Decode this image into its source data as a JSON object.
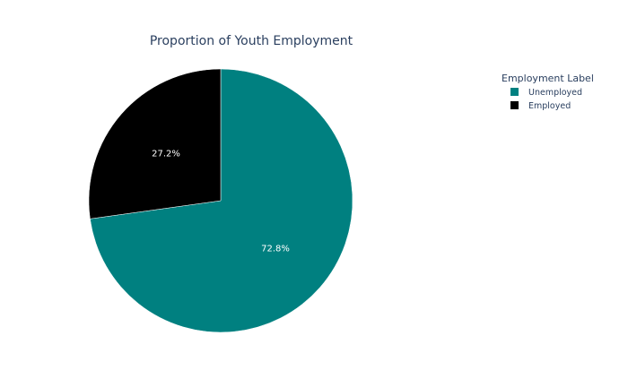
{
  "chart_data": {
    "type": "pie",
    "title": "Proportion of Youth Employment",
    "legend_title": "Employment Label",
    "legend_position": "top-right",
    "slices": [
      {
        "label": "Unemployed",
        "value": 72.8,
        "text": "72.8%",
        "color": "#008080"
      },
      {
        "label": "Employed",
        "value": 27.2,
        "text": "27.2%",
        "color": "#000000"
      }
    ]
  }
}
